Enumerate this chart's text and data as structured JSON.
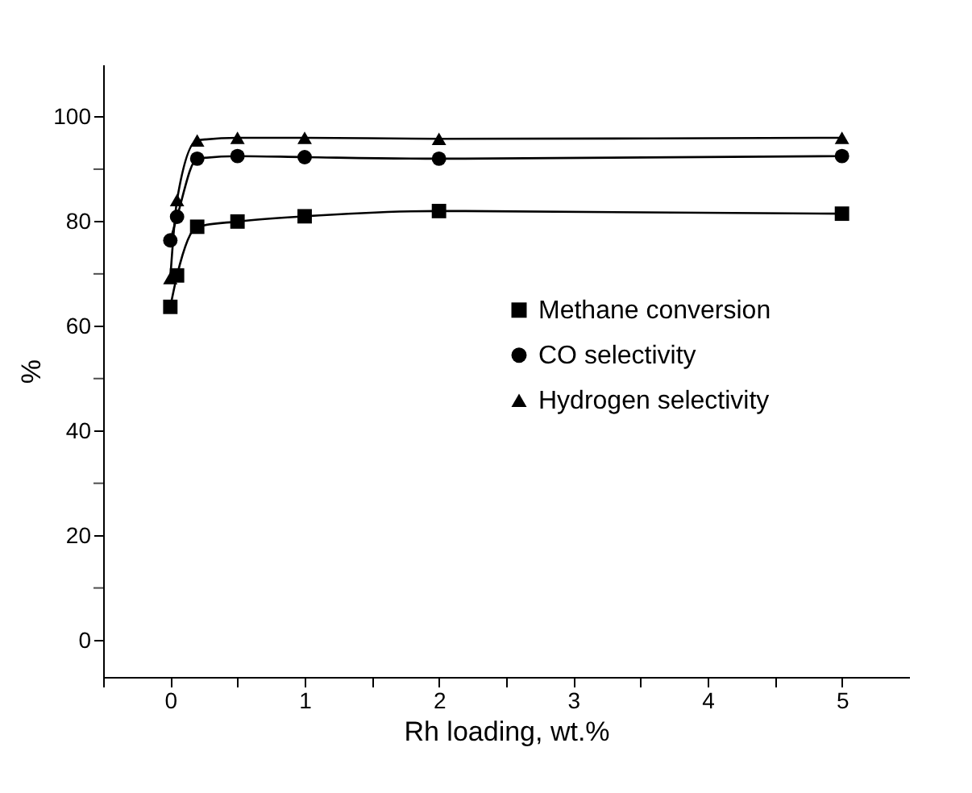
{
  "chart_data": {
    "type": "line",
    "xlabel": "Rh loading, wt.%",
    "ylabel": "%",
    "xlim": [
      -0.5,
      5.5
    ],
    "xticks": [
      {
        "value": -0.5,
        "label": null
      },
      0,
      {
        "value": 0.5,
        "label": null
      },
      1,
      {
        "value": 1.5,
        "label": null
      },
      2,
      {
        "value": 2.5,
        "label": null
      },
      3,
      {
        "value": 3.5,
        "label": null
      },
      4,
      {
        "value": 4.5,
        "label": null
      },
      5
    ],
    "ylim": [
      -7,
      110
    ],
    "yticks": [
      0,
      {
        "value": 10,
        "label": null
      },
      20,
      {
        "value": 30,
        "label": null
      },
      40,
      {
        "value": 50,
        "label": null
      },
      60,
      {
        "value": 70,
        "label": null
      },
      80,
      {
        "value": 90,
        "label": null
      },
      100
    ],
    "x": [
      0,
      0.05,
      0.2,
      0.5,
      1,
      2,
      5
    ],
    "series": [
      {
        "name": "Methane conversion",
        "color": "#000000",
        "marker": "square",
        "values": [
          63.7,
          69.7,
          79,
          80,
          81,
          82,
          81.5
        ]
      },
      {
        "name": "CO selectivity",
        "color": "#000000",
        "marker": "circle",
        "values": [
          76.4,
          80.9,
          92,
          92.5,
          92.3,
          92,
          92.5
        ]
      },
      {
        "name": "Hydrogen selectivity",
        "color": "#000000",
        "marker": "triangle",
        "values": [
          69.2,
          84.1,
          95.5,
          96,
          96,
          95.8,
          96
        ]
      }
    ],
    "grid": false,
    "legend": "right",
    "line_style": "solid"
  }
}
